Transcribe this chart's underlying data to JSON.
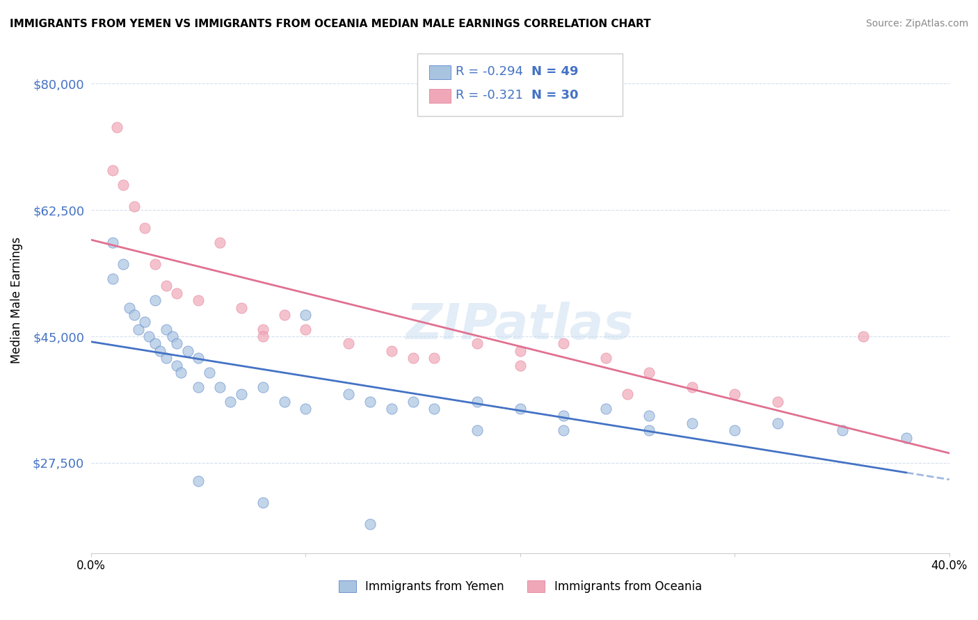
{
  "title": "IMMIGRANTS FROM YEMEN VS IMMIGRANTS FROM OCEANIA MEDIAN MALE EARNINGS CORRELATION CHART",
  "source": "Source: ZipAtlas.com",
  "ylabel": "Median Male Earnings",
  "xlabel": "",
  "xlim": [
    0.0,
    0.4
  ],
  "ylim": [
    15000,
    85000
  ],
  "yticks": [
    27500,
    45000,
    62500,
    80000
  ],
  "ytick_labels": [
    "$27,500",
    "$45,000",
    "$62,500",
    "$80,000"
  ],
  "xticks": [
    0.0,
    0.1,
    0.2,
    0.3,
    0.4
  ],
  "xtick_labels": [
    "0.0%",
    "",
    "",
    "",
    "40.0%"
  ],
  "legend_r1": "-0.294",
  "legend_n1": "49",
  "legend_r2": "-0.321",
  "legend_n2": "30",
  "blue_color": "#a8c4e0",
  "pink_color": "#f0a8b8",
  "line_blue": "#4472c4",
  "line_pink": "#e07090",
  "watermark": "ZIPatlas",
  "blue_scatter_x": [
    0.01,
    0.01,
    0.015,
    0.018,
    0.02,
    0.022,
    0.025,
    0.027,
    0.03,
    0.03,
    0.032,
    0.035,
    0.035,
    0.038,
    0.04,
    0.04,
    0.042,
    0.045,
    0.05,
    0.05,
    0.055,
    0.06,
    0.065,
    0.07,
    0.08,
    0.09,
    0.1,
    0.12,
    0.13,
    0.14,
    0.15,
    0.16,
    0.18,
    0.2,
    0.22,
    0.24,
    0.26,
    0.28,
    0.3,
    0.32,
    0.35,
    0.38,
    0.1,
    0.22,
    0.26,
    0.05,
    0.08,
    0.13,
    0.18
  ],
  "blue_scatter_y": [
    58000,
    53000,
    55000,
    49000,
    48000,
    46000,
    47000,
    45000,
    50000,
    44000,
    43000,
    46000,
    42000,
    45000,
    44000,
    41000,
    40000,
    43000,
    42000,
    38000,
    40000,
    38000,
    36000,
    37000,
    38000,
    36000,
    35000,
    37000,
    36000,
    35000,
    36000,
    35000,
    36000,
    35000,
    34000,
    35000,
    34000,
    33000,
    32000,
    33000,
    32000,
    31000,
    48000,
    32000,
    32000,
    25000,
    22000,
    19000,
    32000
  ],
  "pink_scatter_x": [
    0.01,
    0.012,
    0.015,
    0.02,
    0.025,
    0.03,
    0.035,
    0.04,
    0.05,
    0.06,
    0.07,
    0.08,
    0.09,
    0.1,
    0.12,
    0.14,
    0.16,
    0.18,
    0.2,
    0.22,
    0.24,
    0.26,
    0.28,
    0.3,
    0.32,
    0.15,
    0.2,
    0.25,
    0.08,
    0.36
  ],
  "pink_scatter_y": [
    68000,
    74000,
    66000,
    63000,
    60000,
    55000,
    52000,
    51000,
    50000,
    58000,
    49000,
    46000,
    48000,
    46000,
    44000,
    43000,
    42000,
    44000,
    43000,
    44000,
    42000,
    40000,
    38000,
    37000,
    36000,
    42000,
    41000,
    37000,
    45000,
    45000
  ]
}
